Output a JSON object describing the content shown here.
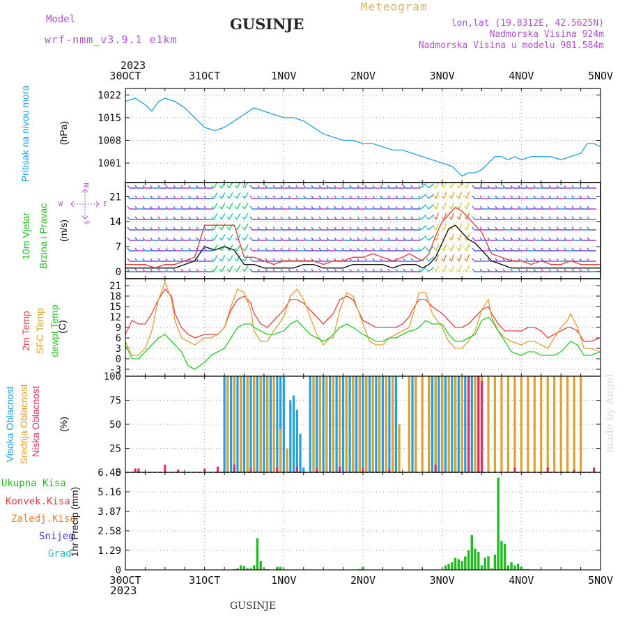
{
  "header": {
    "model_label": "Model",
    "model_name": "wrf-nmm_v3.9.1 e1km",
    "location": "GUSINJE",
    "title": "Meteogram",
    "lonlat": "lon,lat (19.8312E, 42.5625N)",
    "elevation": "Nadmorska Visina 924m",
    "model_elevation": "Nadmorska Visina u modelu 981.584m",
    "year": "2023"
  },
  "footer": {
    "year": "2023",
    "location": "GUSINJE",
    "credit": "made by Angel"
  },
  "time_axis": {
    "tick_labels": [
      "30OCT",
      "31OCT",
      "1NOV",
      "2NOV",
      "3NOV",
      "4NOV",
      "5NOV"
    ],
    "range_hours": [
      0,
      144
    ]
  },
  "panels": {
    "pressure": {
      "label": "Pritisak na nivou mora",
      "unit": "(hPa)",
      "color": "#1fa0e0"
    },
    "wind": {
      "label_line1": "10m Vjetar",
      "label_line2": "Brzina i Pravac",
      "unit": "(m/s)",
      "compass": {
        "n": "N",
        "s": "S",
        "e": "E",
        "w": "W"
      },
      "label_color": "#22bb22"
    },
    "temp": {
      "labels": [
        "2m Temp",
        "SFC Temp",
        "dewpt Temp"
      ],
      "colors": [
        "#e84040",
        "#e0a030",
        "#22cc22"
      ],
      "unit": "(C)"
    },
    "cloud": {
      "labels": [
        "Visoka Oblacnost",
        "Srednja Oblacnost",
        "Niska Oblacnost"
      ],
      "colors": [
        "#1fa0e0",
        "#e0a030",
        "#e03060"
      ],
      "unit": "(%)"
    },
    "precip": {
      "legend": [
        {
          "label": "Ukupna Kisa",
          "color": "#22bb22"
        },
        {
          "label": "Konvek.Kisa",
          "color": "#e84040"
        },
        {
          "label": "Zaledj.Kisa",
          "color": "#f08030"
        },
        {
          "label": "Snijeg",
          "color": "#4040e0"
        },
        {
          "label": "Grad",
          "color": "#20c0c0"
        }
      ],
      "unit": "1hr Precip (mm)"
    }
  },
  "chart_data": [
    {
      "type": "line",
      "name": "pressure",
      "ylabel": "Pritisak na nivou mora (hPa)",
      "ylim": [
        995,
        1024
      ],
      "yticks": [
        1001,
        1008,
        1015,
        1022
      ],
      "x": [
        0,
        3,
        6,
        8,
        10,
        12,
        15,
        18,
        21,
        24,
        27,
        30,
        33,
        36,
        39,
        42,
        45,
        48,
        51,
        54,
        57,
        60,
        63,
        66,
        69,
        72,
        75,
        78,
        81,
        84,
        87,
        90,
        93,
        96,
        99,
        102,
        104,
        106,
        108,
        110,
        112,
        114,
        116,
        118,
        120,
        123,
        126,
        129,
        132,
        135,
        138,
        140,
        142,
        144
      ],
      "series": [
        {
          "name": "",
          "color": "#1fa0e0",
          "values": [
            1020,
            1021,
            1019,
            1017,
            1020,
            1021,
            1020,
            1018,
            1015,
            1012,
            1011,
            1012,
            1014,
            1016,
            1018,
            1017,
            1016,
            1015,
            1015,
            1014,
            1012,
            1010,
            1009,
            1008,
            1008,
            1007,
            1007,
            1006,
            1005,
            1005,
            1004,
            1003,
            1002,
            1001,
            1000,
            997,
            998,
            998,
            999,
            1001,
            1003,
            1003,
            1002,
            1003,
            1002,
            1003,
            1003,
            1003,
            1002,
            1003,
            1004,
            1007,
            1007,
            1006
          ]
        }
      ]
    },
    {
      "type": "line",
      "name": "wind_speed",
      "ylabel": "10m Vjetar Brzina i Pravac (m/s)",
      "ylim": [
        -2,
        25
      ],
      "yticks": [
        0,
        7,
        14,
        21
      ],
      "x": [
        0,
        3,
        6,
        9,
        12,
        15,
        18,
        21,
        24,
        27,
        30,
        33,
        36,
        39,
        42,
        45,
        48,
        51,
        54,
        57,
        60,
        63,
        66,
        69,
        72,
        75,
        78,
        81,
        84,
        86,
        88,
        90,
        92,
        94,
        96,
        98,
        100,
        102,
        104,
        106,
        108,
        111,
        114,
        117,
        120,
        123,
        126,
        129,
        132,
        135,
        138,
        141,
        144
      ],
      "series": [
        {
          "name": "",
          "color": "#e84040",
          "values": [
            2,
            2,
            2,
            1,
            2,
            2,
            3,
            4,
            13,
            13,
            13,
            13,
            4,
            4,
            3,
            2,
            3,
            3,
            3,
            3,
            2,
            3,
            3,
            4,
            4,
            5,
            4,
            3,
            4,
            5,
            4,
            3,
            5,
            10,
            14,
            16,
            18,
            17,
            15,
            13,
            11,
            5,
            4,
            3,
            3,
            2,
            3,
            2,
            2,
            3,
            2,
            2,
            2
          ]
        },
        {
          "name": "",
          "color": "#111111",
          "values": [
            1,
            1,
            1,
            1,
            1,
            1,
            2,
            3,
            7,
            6,
            7,
            6,
            2,
            2,
            1,
            1,
            1,
            1,
            2,
            2,
            1,
            1,
            1,
            2,
            2,
            2,
            2,
            1,
            2,
            2,
            2,
            1,
            2,
            4,
            8,
            12,
            13,
            11,
            9,
            8,
            6,
            3,
            2,
            1,
            1,
            1,
            1,
            1,
            1,
            1,
            1,
            1,
            1
          ]
        }
      ]
    },
    {
      "type": "line",
      "name": "temperature",
      "ylabel": "(C)",
      "ylim": [
        -5,
        23
      ],
      "yticks": [
        -3,
        0,
        3,
        6,
        9,
        12,
        15,
        18,
        21
      ],
      "x": [
        0,
        2,
        4,
        6,
        8,
        10,
        12,
        14,
        15,
        17,
        19,
        21,
        24,
        26,
        28,
        30,
        32,
        34,
        36,
        38,
        39,
        41,
        43,
        45,
        48,
        50,
        52,
        54,
        56,
        58,
        60,
        62,
        63,
        65,
        67,
        69,
        72,
        74,
        76,
        78,
        80,
        82,
        84,
        86,
        87,
        89,
        91,
        93,
        96,
        98,
        100,
        102,
        104,
        106,
        108,
        110,
        111,
        113,
        115,
        117,
        120,
        122,
        124,
        126,
        128,
        130,
        132,
        134,
        135,
        137,
        139,
        141,
        144
      ],
      "series": [
        {
          "name": "2m Temp",
          "color": "#e84040",
          "values": [
            7,
            11,
            10,
            10,
            13,
            17,
            20,
            18,
            13,
            9,
            7,
            6,
            7,
            7,
            7,
            9,
            14,
            17,
            18,
            16,
            13,
            10,
            9,
            11,
            14,
            17,
            17,
            16,
            14,
            12,
            10,
            12,
            13,
            17,
            18,
            17,
            11,
            10,
            9,
            9,
            9,
            9,
            10,
            12,
            14,
            17,
            17,
            15,
            13,
            11,
            9,
            9,
            10,
            12,
            14,
            15,
            13,
            10,
            8,
            8,
            8,
            9,
            9,
            8,
            6,
            7,
            8,
            9,
            9,
            8,
            5,
            5,
            6
          ]
        },
        {
          "name": "SFC Temp",
          "color": "#e0a030",
          "values": [
            5,
            1,
            1,
            3,
            8,
            17,
            22,
            17,
            11,
            6,
            5,
            4,
            6,
            6,
            7,
            9,
            15,
            20,
            19,
            14,
            8,
            5,
            5,
            8,
            12,
            18,
            20,
            17,
            12,
            7,
            4,
            6,
            6,
            14,
            19,
            18,
            10,
            5,
            4,
            4,
            6,
            7,
            8,
            9,
            12,
            19,
            19,
            13,
            9,
            5,
            3,
            3,
            5,
            8,
            14,
            17,
            12,
            8,
            6,
            5,
            4,
            5,
            5,
            4,
            3,
            6,
            9,
            11,
            13,
            9,
            3,
            3,
            2
          ]
        },
        {
          "name": "dewpt Temp",
          "color": "#22cc22",
          "values": [
            4,
            0,
            0,
            2,
            4,
            6,
            7,
            5,
            4,
            2,
            -2,
            -3,
            -1,
            1,
            2,
            3,
            6,
            9,
            10,
            10,
            9,
            8,
            7,
            7,
            8,
            10,
            11,
            9,
            7,
            6,
            5,
            6,
            7,
            9,
            10,
            9,
            7,
            6,
            5,
            5,
            6,
            6,
            7,
            8,
            8,
            9,
            11,
            10,
            10,
            7,
            5,
            5,
            6,
            7,
            11,
            12,
            11,
            8,
            5,
            2,
            1,
            2,
            2,
            1,
            1,
            1,
            2,
            4,
            5,
            4,
            1,
            1,
            2
          ]
        }
      ]
    },
    {
      "type": "bar",
      "name": "cloud_cover",
      "ylabel": "(%)",
      "ylim": [
        0,
        100
      ],
      "yticks": [
        0,
        25,
        50,
        75,
        100
      ],
      "series": [
        {
          "name": "Visoka Oblacnost",
          "color": "#1fa0e0",
          "x": [
            30,
            31,
            32,
            33,
            34,
            35,
            36,
            37,
            38,
            39,
            40,
            41,
            42,
            43,
            44,
            45,
            46,
            47,
            48,
            50,
            51,
            52,
            53,
            54,
            56,
            57,
            58,
            59,
            60,
            61,
            62,
            63,
            64,
            65,
            66,
            67,
            68,
            69,
            70,
            71,
            72,
            73,
            74,
            75,
            76,
            77,
            78,
            79,
            80,
            81,
            82,
            87,
            88,
            92,
            93,
            94,
            95,
            96,
            97,
            98,
            99,
            100,
            101,
            102,
            103,
            104,
            105,
            106,
            107,
            108
          ],
          "values": [
            100,
            100,
            100,
            100,
            100,
            100,
            100,
            100,
            100,
            100,
            100,
            100,
            100,
            100,
            100,
            100,
            100,
            100,
            100,
            75,
            80,
            65,
            40,
            5,
            100,
            100,
            100,
            100,
            100,
            100,
            100,
            100,
            100,
            100,
            100,
            100,
            100,
            100,
            100,
            100,
            100,
            100,
            100,
            100,
            100,
            100,
            100,
            100,
            100,
            100,
            100,
            100,
            100,
            100,
            100,
            100,
            100,
            100,
            100,
            100,
            100,
            100,
            100,
            100,
            100,
            100,
            100,
            100,
            100,
            100
          ]
        },
        {
          "name": "Srednja Oblacnost",
          "color": "#e0a030",
          "x": [
            31,
            33,
            35,
            37,
            39,
            41,
            43,
            45,
            47,
            49,
            57,
            59,
            61,
            63,
            65,
            67,
            69,
            71,
            73,
            75,
            77,
            79,
            81,
            83,
            86,
            88,
            90,
            92,
            94,
            96,
            98,
            100,
            102,
            104,
            106,
            108,
            110,
            112,
            114,
            116,
            118,
            120,
            122,
            124,
            126,
            128,
            130,
            132,
            134,
            136,
            138
          ],
          "values": [
            100,
            100,
            100,
            100,
            100,
            100,
            100,
            100,
            45,
            25,
            100,
            100,
            100,
            100,
            100,
            100,
            100,
            100,
            100,
            100,
            100,
            100,
            100,
            50,
            100,
            100,
            100,
            100,
            100,
            100,
            100,
            100,
            100,
            100,
            100,
            100,
            100,
            100,
            100,
            100,
            100,
            100,
            100,
            100,
            100,
            100,
            100,
            100,
            100,
            100,
            100
          ]
        },
        {
          "name": "Niska Oblacnost",
          "color": "#e03060",
          "x": [
            3,
            4,
            12,
            16,
            24,
            28,
            33,
            38,
            46,
            52,
            58,
            65,
            72,
            80,
            94,
            104,
            107,
            108,
            118,
            128,
            136,
            142
          ],
          "values": [
            4,
            4,
            8,
            3,
            4,
            6,
            8,
            4,
            5,
            6,
            4,
            6,
            4,
            3,
            8,
            100,
            100,
            95,
            5,
            5,
            3,
            5
          ]
        }
      ]
    },
    {
      "type": "bar",
      "name": "precipitation",
      "ylabel": "1hr Precip (mm)",
      "ylim": [
        0,
        6.45
      ],
      "yticks": [
        0,
        1.29,
        2.58,
        3.87,
        5.16,
        6.45
      ],
      "series": [
        {
          "name": "Ukupna Kisa",
          "color": "#22bb22",
          "x": [
            33,
            34,
            35,
            36,
            37,
            38,
            39,
            40,
            41,
            42,
            43,
            46,
            47,
            48,
            71,
            72,
            97,
            98,
            99,
            100,
            101,
            102,
            103,
            104,
            105,
            106,
            107,
            108,
            109,
            110,
            111,
            112,
            113,
            114,
            115,
            116,
            117,
            118,
            119,
            120,
            121,
            122
          ],
          "values": [
            0.05,
            0.1,
            0.3,
            0.25,
            0.1,
            0.1,
            0.3,
            2.1,
            0.6,
            0.1,
            0.05,
            0.2,
            0.2,
            0.05,
            0.05,
            0.2,
            0.3,
            0.4,
            0.5,
            0.8,
            0.7,
            0.6,
            0.9,
            1.3,
            2.3,
            1.4,
            1.2,
            0.3,
            0.8,
            0.9,
            0.1,
            1.0,
            6.1,
            1.9,
            1.7,
            0.3,
            0.5,
            0.3,
            0.4,
            0.2,
            0.05,
            0.05
          ]
        }
      ]
    }
  ]
}
